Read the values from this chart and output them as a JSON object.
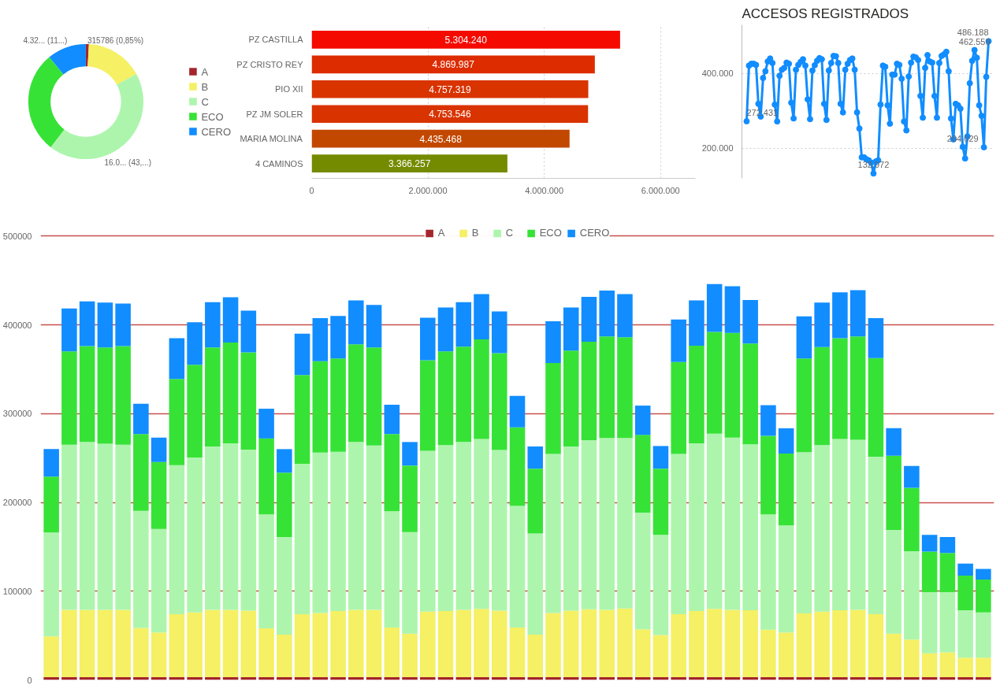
{
  "chart_data": [
    {
      "type": "donut",
      "categories": [
        "A",
        "B",
        "C",
        "ECO",
        "CERO"
      ],
      "values": [
        0.85,
        16.2,
        43.4,
        28.6,
        10.95
      ],
      "colors": [
        "#a4262c",
        "#f5f064",
        "#adf5ad",
        "#37e237",
        "#118dff"
      ],
      "value_labels": [
        "315786 (0,85%)",
        null,
        "16.0... (43,...)",
        null,
        "4.32... (11...)"
      ],
      "legend": "right"
    },
    {
      "type": "bar",
      "orientation": "horizontal",
      "categories": [
        "PZ CASTILLA",
        "PZ CRISTO REY",
        "PIO XII",
        "PZ JM SOLER",
        "MARIA MOLINA",
        "4 CAMINOS"
      ],
      "values": [
        5304240,
        4869987,
        4757319,
        4753546,
        4435468,
        3366257
      ],
      "colors": [
        "#f50a00",
        "#dd2c00",
        "#d93300",
        "#d93300",
        "#c24800",
        "#748b00"
      ],
      "value_labels": [
        "5.304.240",
        "4.869.987",
        "4.757.319",
        "4.753.546",
        "4.435.468",
        "3.366.257"
      ],
      "xlim": [
        0,
        6600000
      ],
      "xticks": [
        0,
        {
          "value": 2000000,
          "label": "2.000.000"
        },
        {
          "value": 4000000,
          "label": "4.000.000"
        },
        {
          "value": 6000000,
          "label": "6.000.000"
        }
      ],
      "grid": "x"
    },
    {
      "type": "line",
      "title": "ACCESOS REGISTRADOS",
      "categories": [
        null,
        null,
        null,
        null,
        null,
        null,
        null,
        null,
        null,
        null,
        null,
        null,
        null,
        null,
        null,
        null,
        null,
        null,
        null,
        null,
        null,
        null,
        null,
        null,
        null,
        null,
        null,
        null,
        null,
        null,
        null,
        null,
        null,
        null,
        null,
        null,
        null,
        null,
        null,
        null,
        null,
        null,
        null,
        null,
        null,
        null,
        null,
        null,
        null,
        null,
        null,
        null,
        null,
        null,
        null,
        null,
        null,
        null,
        null,
        null,
        null,
        null,
        null,
        null,
        null,
        null,
        null,
        null,
        null,
        null,
        null,
        null,
        null,
        null,
        null,
        null,
        null,
        null,
        null,
        null,
        null,
        null,
        null,
        null,
        null,
        null,
        null,
        null,
        null,
        null,
        null,
        null,
        null,
        null,
        null,
        null,
        null,
        null,
        null,
        null,
        null,
        null,
        null,
        null
      ],
      "series": [
        {
          "color": "#118dff",
          "values": [
            272431,
            421000,
            426000,
            426000,
            423000,
            319000,
            285000,
            388000,
            406000,
            432000,
            440000,
            428000,
            317000,
            272000,
            394000,
            410000,
            415000,
            429000,
            426000,
            322000,
            280000,
            410000,
            423000,
            431000,
            438000,
            421000,
            331000,
            278000,
            408000,
            422000,
            434000,
            441000,
            438000,
            319000,
            276000,
            408000,
            428000,
            447000,
            446000,
            428000,
            319000,
            296000,
            410000,
            426000,
            436000,
            440000,
            410000,
            296000,
            253000,
            176000,
            176000,
            171000,
            168000,
            162000,
            132972,
            165000,
            168000,
            317000,
            421000,
            418000,
            315000,
            266000,
            397000,
            397000,
            426000,
            423000,
            386000,
            272000,
            248000,
            392000,
            429000,
            445000,
            443000,
            436000,
            340000,
            282000,
            415000,
            449000,
            432000,
            429000,
            340000,
            282000,
            428000,
            447000,
            451000,
            458000,
            406000,
            280000,
            224000,
            319000,
            315000,
            306000,
            204029,
            173000,
            232000,
            374000,
            434000,
            462559,
            442000,
            315000,
            287000,
            203000,
            391000,
            486188
          ],
          "value_labels": [
            "272.431",
            null,
            null,
            null,
            null,
            null,
            null,
            null,
            null,
            null,
            null,
            null,
            null,
            null,
            null,
            null,
            null,
            null,
            null,
            null,
            null,
            null,
            null,
            null,
            null,
            null,
            null,
            null,
            null,
            null,
            null,
            null,
            null,
            null,
            null,
            null,
            null,
            null,
            null,
            null,
            null,
            null,
            null,
            null,
            null,
            null,
            null,
            null,
            null,
            null,
            null,
            null,
            null,
            null,
            "132.972",
            null,
            null,
            null,
            null,
            null,
            null,
            null,
            null,
            null,
            null,
            null,
            null,
            null,
            null,
            null,
            null,
            null,
            null,
            null,
            null,
            null,
            null,
            null,
            null,
            null,
            null,
            null,
            null,
            null,
            null,
            null,
            null,
            null,
            null,
            null,
            null,
            null,
            "204.029",
            null,
            null,
            null,
            null,
            "462.559",
            null,
            null,
            null,
            null,
            null,
            "486.188"
          ]
        }
      ],
      "marker": "circle",
      "ylim": [
        120000,
        530000
      ],
      "yticks": [
        {
          "value": 200000,
          "label": "200.000"
        },
        {
          "value": 400000,
          "label": "400.000"
        }
      ],
      "grid": "y"
    },
    {
      "type": "bar",
      "stacked": true,
      "categories": [
        null,
        null,
        null,
        null,
        null,
        null,
        null,
        null,
        null,
        null,
        null,
        null,
        null,
        null,
        null,
        null,
        null,
        null,
        null,
        null,
        null,
        null,
        null,
        null,
        null,
        null,
        null,
        null,
        null,
        null,
        null,
        null,
        null,
        null,
        null,
        null,
        null,
        null,
        null,
        null,
        null,
        null,
        null,
        null,
        null,
        null,
        null,
        null,
        null,
        null,
        null,
        null,
        null
      ],
      "series": [
        {
          "name": "A",
          "color": "#a4262c",
          "values": [
            3000,
            3000,
            3000,
            3000,
            3000,
            3000,
            3000,
            3000,
            3000,
            3000,
            3000,
            3000,
            3000,
            3000,
            3000,
            3000,
            3000,
            3000,
            3000,
            3000,
            3000,
            3000,
            3000,
            3000,
            3000,
            3000,
            3000,
            3000,
            3000,
            3000,
            3000,
            3000,
            3000,
            3000,
            3000,
            3000,
            3000,
            3000,
            3000,
            3000,
            3000,
            3000,
            3000,
            3000,
            3000,
            3000,
            3000,
            3000,
            3000,
            3000,
            3000,
            3000,
            3000
          ]
        },
        {
          "name": "B",
          "color": "#f5f064",
          "values": [
            46000,
            76000,
            76000,
            76000,
            76000,
            55500,
            50500,
            71000,
            73000,
            76000,
            76000,
            75000,
            55000,
            48000,
            71000,
            72500,
            74500,
            76000,
            76000,
            56000,
            49000,
            74000,
            74500,
            76000,
            77000,
            75000,
            56000,
            48000,
            72500,
            75000,
            76500,
            76000,
            77500,
            54000,
            47500,
            71000,
            74500,
            77000,
            76000,
            75500,
            53500,
            50500,
            72000,
            74000,
            75500,
            76000,
            71000,
            49000,
            42500,
            27000,
            28000,
            22000,
            22000
          ]
        },
        {
          "name": "C",
          "color": "#adf5ad",
          "values": [
            117000,
            186000,
            189000,
            187000,
            186000,
            132000,
            116500,
            168000,
            174500,
            184000,
            187500,
            181500,
            128500,
            110000,
            169500,
            180500,
            179500,
            189000,
            185000,
            131000,
            114500,
            181000,
            187000,
            189000,
            191500,
            181000,
            137000,
            114000,
            179000,
            185000,
            190500,
            193500,
            192000,
            131500,
            113000,
            180500,
            189000,
            197500,
            194000,
            187000,
            130000,
            120500,
            181500,
            187500,
            193000,
            191500,
            177500,
            117000,
            99500,
            69000,
            68000,
            53500,
            51000
          ]
        },
        {
          "name": "ECO",
          "color": "#37e237",
          "values": [
            63000,
            105000,
            108000,
            108500,
            111000,
            86500,
            75500,
            97000,
            104500,
            111500,
            113500,
            109500,
            85500,
            72500,
            100000,
            103000,
            105000,
            110000,
            110500,
            87000,
            75000,
            102000,
            105500,
            107500,
            112000,
            109000,
            88500,
            73000,
            102500,
            108000,
            111000,
            114500,
            113500,
            87500,
            74500,
            103500,
            110000,
            114500,
            118000,
            113500,
            88500,
            81000,
            105500,
            110500,
            113500,
            116500,
            111000,
            83500,
            71500,
            45500,
            44000,
            39000,
            37000
          ]
        },
        {
          "name": "CERO",
          "color": "#118dff",
          "values": [
            31000,
            48500,
            50500,
            50500,
            48000,
            34000,
            27500,
            46000,
            48000,
            51000,
            51000,
            47000,
            33500,
            26500,
            46500,
            48500,
            48000,
            49500,
            48000,
            33000,
            26500,
            48000,
            49500,
            50000,
            51000,
            47000,
            35500,
            25000,
            47000,
            48500,
            50500,
            51500,
            48500,
            33000,
            25500,
            48000,
            51000,
            54000,
            52500,
            49000,
            34500,
            28500,
            47500,
            50000,
            51500,
            52000,
            45000,
            31000,
            24500,
            19000,
            18000,
            13500,
            12000
          ]
        }
      ],
      "ylim": [
        0,
        510000
      ],
      "yticks": [
        0,
        100000,
        200000,
        300000,
        400000,
        500000
      ],
      "grid": "y",
      "legend": "top"
    }
  ]
}
